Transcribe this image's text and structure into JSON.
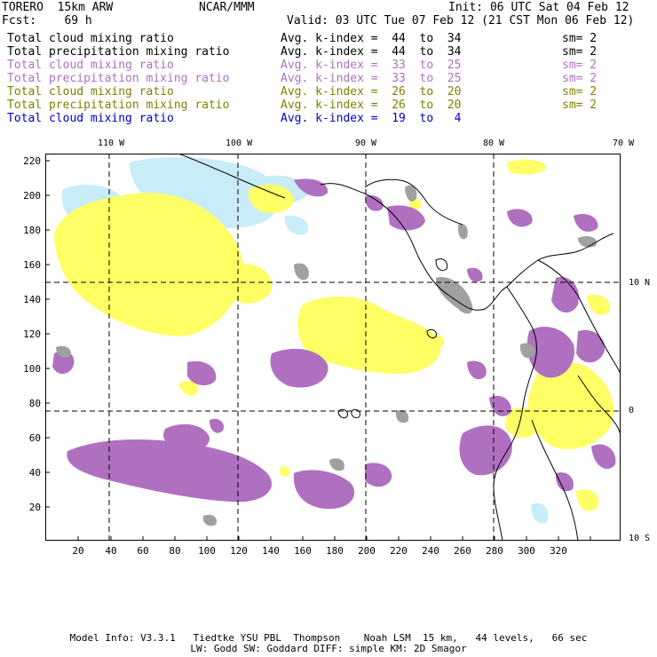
{
  "header": {
    "model": "TORERO  15km ARW",
    "org": "NCAR/MMM",
    "init": "Init: 06 UTC Sat 04 Feb 12",
    "fcst": "Fcst:    69 h",
    "valid": "Valid: 03 UTC Tue 07 Feb 12 (21 CST Mon 06 Feb 12)"
  },
  "legend": [
    {
      "field": "Total cloud mixing ratio",
      "index": "Avg. k-index =  44  to  34",
      "sm": "sm= 2",
      "color": "#000000"
    },
    {
      "field": "Total precipitation mixing ratio",
      "index": "Avg. k-index =  44  to  34",
      "sm": "sm= 2",
      "color": "#000000"
    },
    {
      "field": "Total cloud mixing ratio",
      "index": "Avg. k-index =  33  to  25",
      "sm": "sm= 2",
      "color": "#b070c0"
    },
    {
      "field": "Total precipitation mixing ratio",
      "index": "Avg. k-index =  33  to  25",
      "sm": "sm= 2",
      "color": "#b070c0"
    },
    {
      "field": "Total cloud mixing ratio",
      "index": "Avg. k-index =  26  to  20",
      "sm": "sm= 2",
      "color": "#808000"
    },
    {
      "field": "Total precipitation mixing ratio",
      "index": "Avg. k-index =  26  to  20",
      "sm": "sm= 2",
      "color": "#808000"
    },
    {
      "field": "Total cloud mixing ratio",
      "index": "Avg. k-index =  19  to   4",
      "sm": "",
      "color": "#0000cc"
    }
  ],
  "lon_labels": [
    "110 W",
    "100 W",
    "90 W",
    "80 W",
    "70 W"
  ],
  "lat_labels": [
    "10 N",
    "0",
    "10 S"
  ],
  "y_ticks": [
    "220",
    "200",
    "180",
    "160",
    "140",
    "120",
    "100",
    "80",
    "60",
    "40",
    "20"
  ],
  "x_ticks": [
    "20",
    "40",
    "60",
    "80",
    "100",
    "120",
    "140",
    "160",
    "180",
    "200",
    "220",
    "240",
    "260",
    "280",
    "300",
    "320"
  ],
  "footer": {
    "line1": "Model Info: V3.3.1   Tiedtke YSU PBL  Thompson    Noah LSM  15 km,   44 levels,   66 sec",
    "line2": "LW: Godd SW: Goddard DIFF: simple KM: 2D Smagor"
  },
  "colors": {
    "yellow": "#ffff66",
    "purple": "#b070c0",
    "gray": "#a0a0a0",
    "cyan": "#c8ecf8",
    "coast": "#000000"
  }
}
